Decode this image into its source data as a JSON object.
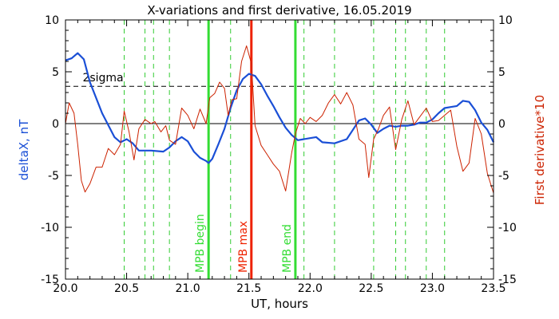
{
  "chart_data": {
    "type": "line",
    "title": "X-variations and first derivative, 16.05.2019",
    "xlabel": "UT, hours",
    "ylabel_left": "deltaX, nT",
    "ylabel_right": "First derivative*10",
    "xlim": [
      20.0,
      23.5
    ],
    "ylim": [
      -15,
      10
    ],
    "xticks": [
      20.0,
      20.5,
      21.0,
      21.5,
      22.0,
      22.5,
      23.0,
      23.5
    ],
    "xtick_labels": [
      "20.0",
      "20.5",
      "21.0",
      "21.5",
      "22.0",
      "22.5",
      "23.0",
      "23.5"
    ],
    "yticks": [
      -15,
      -10,
      -5,
      0,
      5,
      10
    ],
    "ytick_labels": [
      "-15",
      "-10",
      "-5",
      "0",
      "5",
      "10"
    ],
    "threshold": {
      "label": "2sigma",
      "value": 3.6
    },
    "zero_line": 0,
    "green_dashed_lines_x": [
      20.48,
      20.65,
      20.72,
      20.85,
      21.35,
      21.95,
      22.2,
      22.52,
      22.7,
      22.78,
      22.95,
      23.1
    ],
    "markers": [
      {
        "label": "MPB begin",
        "x": 21.17,
        "color": "#33dd33"
      },
      {
        "label": "MPB max",
        "x": 21.52,
        "color": "#ee2200"
      },
      {
        "label": "MPB end",
        "x": 21.88,
        "color": "#33dd33"
      }
    ],
    "series": [
      {
        "color": "#1a4fd6",
        "x": [
          20.0,
          20.05,
          20.1,
          20.15,
          20.2,
          20.3,
          20.4,
          20.45,
          20.5,
          20.55,
          20.6,
          20.7,
          20.8,
          20.85,
          20.9,
          20.95,
          21.0,
          21.05,
          21.1,
          21.15,
          21.17,
          21.2,
          21.25,
          21.3,
          21.35,
          21.4,
          21.45,
          21.5,
          21.55,
          21.6,
          21.65,
          21.7,
          21.75,
          21.8,
          21.85,
          21.9,
          21.95,
          22.0,
          22.05,
          22.1,
          22.2,
          22.3,
          22.35,
          22.4,
          22.45,
          22.5,
          22.55,
          22.6,
          22.65,
          22.7,
          22.75,
          22.8,
          22.85,
          22.9,
          22.95,
          23.0,
          23.05,
          23.1,
          23.15,
          23.2,
          23.25,
          23.3,
          23.35,
          23.4,
          23.45,
          23.5
        ],
        "values": [
          6.1,
          6.3,
          6.8,
          6.2,
          4.0,
          1.0,
          -1.3,
          -1.8,
          -1.5,
          -1.9,
          -2.6,
          -2.6,
          -2.7,
          -2.3,
          -1.7,
          -1.3,
          -1.7,
          -2.7,
          -3.3,
          -3.6,
          -3.8,
          -3.4,
          -2.0,
          -0.5,
          1.5,
          3.2,
          4.3,
          4.8,
          4.6,
          3.8,
          2.7,
          1.7,
          0.6,
          -0.4,
          -1.1,
          -1.6,
          -1.5,
          -1.4,
          -1.3,
          -1.8,
          -1.9,
          -1.5,
          -0.6,
          0.3,
          0.5,
          -0.1,
          -0.9,
          -0.5,
          -0.2,
          -0.3,
          -0.2,
          -0.2,
          -0.1,
          0.1,
          0.1,
          0.4,
          1.0,
          1.5,
          1.6,
          1.7,
          2.2,
          2.1,
          1.3,
          0.1,
          -0.6,
          -1.8
        ]
      },
      {
        "color": "#cc2200",
        "x": [
          20.0,
          20.03,
          20.07,
          20.1,
          20.13,
          20.16,
          20.2,
          20.25,
          20.3,
          20.35,
          20.4,
          20.45,
          20.48,
          20.52,
          20.56,
          20.6,
          20.65,
          20.7,
          20.73,
          20.78,
          20.82,
          20.85,
          20.9,
          20.95,
          21.0,
          21.05,
          21.1,
          21.15,
          21.18,
          21.22,
          21.26,
          21.3,
          21.33,
          21.36,
          21.4,
          21.44,
          21.48,
          21.52,
          21.55,
          21.6,
          21.65,
          21.7,
          21.75,
          21.8,
          21.85,
          21.88,
          21.92,
          21.96,
          22.0,
          22.05,
          22.1,
          22.15,
          22.2,
          22.25,
          22.3,
          22.35,
          22.4,
          22.45,
          22.48,
          22.52,
          22.56,
          22.6,
          22.65,
          22.7,
          22.75,
          22.8,
          22.85,
          22.9,
          22.95,
          23.0,
          23.05,
          23.1,
          23.15,
          23.2,
          23.25,
          23.3,
          23.35,
          23.4,
          23.45,
          23.5
        ],
        "values": [
          0.0,
          2.0,
          1.0,
          -2.0,
          -5.5,
          -6.6,
          -5.8,
          -4.2,
          -4.2,
          -2.4,
          -3.0,
          -2.0,
          1.2,
          -0.8,
          -3.5,
          -0.5,
          0.4,
          0.0,
          0.2,
          -0.8,
          -0.2,
          -1.6,
          -2.0,
          1.5,
          0.8,
          -0.5,
          1.4,
          0.0,
          2.5,
          2.9,
          4.0,
          3.4,
          0.8,
          2.3,
          2.4,
          6.0,
          7.5,
          5.8,
          -0.2,
          -2.1,
          -3.0,
          -3.9,
          -4.6,
          -6.5,
          -2.8,
          -1.0,
          0.5,
          0.0,
          0.6,
          0.2,
          0.8,
          2.0,
          2.8,
          1.9,
          3.0,
          1.8,
          -1.5,
          -2.0,
          -5.2,
          -1.5,
          -0.5,
          0.8,
          1.6,
          -2.5,
          0.4,
          2.2,
          -0.1,
          0.7,
          1.5,
          0.2,
          0.3,
          0.8,
          1.3,
          -2.2,
          -4.6,
          -3.8,
          0.5,
          -1.0,
          -4.8,
          -6.7
        ]
      }
    ]
  }
}
